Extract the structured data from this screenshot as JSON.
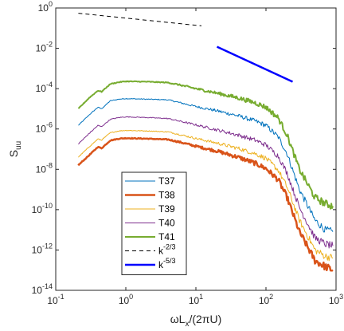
{
  "chart_data": {
    "type": "line",
    "title": "",
    "xscale": "log",
    "yscale": "log",
    "xlim": [
      0.1,
      1000
    ],
    "ylim": [
      1e-14,
      1
    ],
    "grid": false,
    "legend_position": "lower-left",
    "xlabel": {
      "main": "ωL",
      "sub": "x",
      "tail": "/(2πU)"
    },
    "ylabel": {
      "main": "S",
      "sub": "uu"
    },
    "x_ticks": [
      {
        "value": 0.1,
        "base": "10",
        "exp": "-1"
      },
      {
        "value": 1,
        "base": "10",
        "exp": "0"
      },
      {
        "value": 10,
        "base": "10",
        "exp": "1"
      },
      {
        "value": 100,
        "base": "10",
        "exp": "2"
      },
      {
        "value": 1000,
        "base": "10",
        "exp": "3"
      }
    ],
    "y_ticks": [
      {
        "value": 1,
        "base": "10",
        "exp": "0"
      },
      {
        "value": 0.01,
        "base": "10",
        "exp": "-2"
      },
      {
        "value": 0.0001,
        "base": "10",
        "exp": "-4"
      },
      {
        "value": 1e-06,
        "base": "10",
        "exp": "-6"
      },
      {
        "value": 1e-08,
        "base": "10",
        "exp": "-8"
      },
      {
        "value": 1e-10,
        "base": "10",
        "exp": "-10"
      },
      {
        "value": 1e-12,
        "base": "10",
        "exp": "-12"
      },
      {
        "value": 1e-14,
        "base": "10",
        "exp": "-14"
      }
    ],
    "series": [
      {
        "name": "T37",
        "color": "#0072bd",
        "width": 1,
        "points": [
          [
            0.21,
            1.5e-06
          ],
          [
            0.3,
            5e-06
          ],
          [
            0.4,
            1.2e-05
          ],
          [
            0.45,
            1e-05
          ],
          [
            0.6,
            2.5e-05
          ],
          [
            0.8,
            3e-05
          ],
          [
            1.0,
            3.2e-05
          ],
          [
            2,
            3e-05
          ],
          [
            4,
            2.8e-05
          ],
          [
            6,
            2e-05
          ],
          [
            10,
            1.3e-05
          ],
          [
            20,
            8e-06
          ],
          [
            40,
            4.5e-06
          ],
          [
            70,
            2.5e-06
          ],
          [
            100,
            1.5e-06
          ],
          [
            150,
            4e-07
          ],
          [
            200,
            6e-08
          ],
          [
            300,
            1e-09
          ],
          [
            500,
            3e-11
          ],
          [
            700,
            1e-11
          ],
          [
            900,
            8e-12
          ]
        ]
      },
      {
        "name": "T38",
        "color": "#d95319",
        "width": 2.5,
        "points": [
          [
            0.21,
            1.6e-08
          ],
          [
            0.3,
            5e-08
          ],
          [
            0.4,
            1.3e-07
          ],
          [
            0.45,
            1.1e-07
          ],
          [
            0.6,
            2.7e-07
          ],
          [
            0.8,
            3.3e-07
          ],
          [
            1.0,
            3.5e-07
          ],
          [
            2,
            3.3e-07
          ],
          [
            4,
            3e-07
          ],
          [
            6,
            2.2e-07
          ],
          [
            10,
            1.4e-07
          ],
          [
            20,
            8e-08
          ],
          [
            40,
            4e-08
          ],
          [
            70,
            2e-08
          ],
          [
            100,
            1.1e-08
          ],
          [
            150,
            3e-09
          ],
          [
            200,
            4e-10
          ],
          [
            300,
            8e-12
          ],
          [
            500,
            3e-13
          ],
          [
            700,
            1.5e-13
          ],
          [
            900,
            1e-13
          ]
        ]
      },
      {
        "name": "T39",
        "color": "#edb120",
        "width": 1,
        "points": [
          [
            0.21,
            4e-08
          ],
          [
            0.3,
            1.3e-07
          ],
          [
            0.4,
            3.2e-07
          ],
          [
            0.45,
            2.8e-07
          ],
          [
            0.6,
            6.5e-07
          ],
          [
            0.8,
            8e-07
          ],
          [
            1.0,
            8.5e-07
          ],
          [
            2,
            8e-07
          ],
          [
            4,
            7.2e-07
          ],
          [
            6,
            5.2e-07
          ],
          [
            10,
            3.4e-07
          ],
          [
            20,
            2e-07
          ],
          [
            40,
            1.1e-07
          ],
          [
            70,
            6e-08
          ],
          [
            100,
            3.5e-08
          ],
          [
            150,
            9e-09
          ],
          [
            200,
            1.3e-09
          ],
          [
            300,
            3e-11
          ],
          [
            500,
            1e-12
          ],
          [
            700,
            5e-13
          ],
          [
            900,
            4e-13
          ]
        ]
      },
      {
        "name": "T40",
        "color": "#7e2f8e",
        "width": 1,
        "points": [
          [
            0.21,
            1.8e-07
          ],
          [
            0.3,
            6e-07
          ],
          [
            0.4,
            1.5e-06
          ],
          [
            0.45,
            1.3e-06
          ],
          [
            0.6,
            3e-06
          ],
          [
            0.8,
            3.7e-06
          ],
          [
            1.0,
            4e-06
          ],
          [
            2,
            3.7e-06
          ],
          [
            4,
            3.3e-06
          ],
          [
            6,
            2.4e-06
          ],
          [
            10,
            1.6e-06
          ],
          [
            20,
            9e-07
          ],
          [
            40,
            5e-07
          ],
          [
            70,
            2.8e-07
          ],
          [
            100,
            1.6e-07
          ],
          [
            150,
            4.5e-08
          ],
          [
            200,
            6.5e-09
          ],
          [
            300,
            1.3e-10
          ],
          [
            500,
            4e-12
          ],
          [
            700,
            2e-12
          ],
          [
            900,
            1.6e-12
          ]
        ]
      },
      {
        "name": "T41",
        "color": "#77ac30",
        "width": 2,
        "points": [
          [
            0.21,
            1e-05
          ],
          [
            0.3,
            3.5e-05
          ],
          [
            0.4,
            8e-05
          ],
          [
            0.45,
            7e-05
          ],
          [
            0.6,
            0.00017
          ],
          [
            0.8,
            0.00021
          ],
          [
            1.0,
            0.00023
          ],
          [
            2,
            0.00022
          ],
          [
            4,
            0.0002
          ],
          [
            6,
            0.00015
          ],
          [
            10,
            0.0001
          ],
          [
            20,
            6e-05
          ],
          [
            40,
            3.5e-05
          ],
          [
            70,
            2e-05
          ],
          [
            100,
            1.2e-05
          ],
          [
            150,
            3.5e-06
          ],
          [
            200,
            5e-07
          ],
          [
            300,
            1e-08
          ],
          [
            500,
            4e-10
          ],
          [
            700,
            2e-10
          ],
          [
            900,
            1.5e-10
          ]
        ]
      },
      {
        "name": "k^{-2/3}",
        "color": "#000000",
        "width": 1,
        "dash": "5,4",
        "points": [
          [
            0.21,
            0.55
          ],
          [
            12,
            0.13
          ]
        ]
      },
      {
        "name": "k^{-5/3}",
        "color": "#0000ff",
        "width": 2.5,
        "points": [
          [
            20,
            0.012
          ],
          [
            240,
            0.00022
          ]
        ]
      }
    ],
    "legend": [
      {
        "label": "T37"
      },
      {
        "label": "T38"
      },
      {
        "label": "T39"
      },
      {
        "label": "T40"
      },
      {
        "label": "T41"
      },
      {
        "base": "k",
        "exp": "-2/3"
      },
      {
        "base": "k",
        "exp": "-5/3"
      }
    ]
  }
}
